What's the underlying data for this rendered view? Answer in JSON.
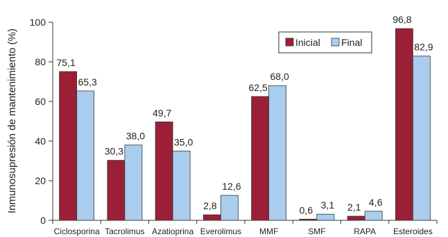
{
  "chart_data": {
    "type": "bar",
    "title": "",
    "xlabel": "",
    "ylabel": "Inmunosupresión de mantenimiento (%)",
    "ylim": [
      0,
      100
    ],
    "yticks": [
      "0",
      "20",
      "40",
      "60",
      "80",
      "100"
    ],
    "grid": false,
    "legend_position": "top-right",
    "categories": [
      "Ciclosporina",
      "Tacrolimus",
      "Azatioprina",
      "Everolimus",
      "MMF",
      "SMF",
      "RAPA",
      "Esteroides"
    ],
    "series": [
      {
        "name": "Inicial",
        "color": "#9b2035",
        "values": [
          75.1,
          30.3,
          49.7,
          2.8,
          62.5,
          0.6,
          2.1,
          96.8
        ],
        "labels": [
          "75,1",
          "30,3",
          "49,7",
          "2,8",
          "62,5",
          "0,6",
          "2,1",
          "96,8"
        ]
      },
      {
        "name": "Final",
        "color": "#a9cdee",
        "values": [
          65.3,
          38.0,
          35.0,
          12.6,
          68.0,
          3.1,
          4.6,
          82.9
        ],
        "labels": [
          "65,3",
          "38,0",
          "35,0",
          "12,6",
          "68,0",
          "3,1",
          "4,6",
          "82,9"
        ]
      }
    ]
  }
}
